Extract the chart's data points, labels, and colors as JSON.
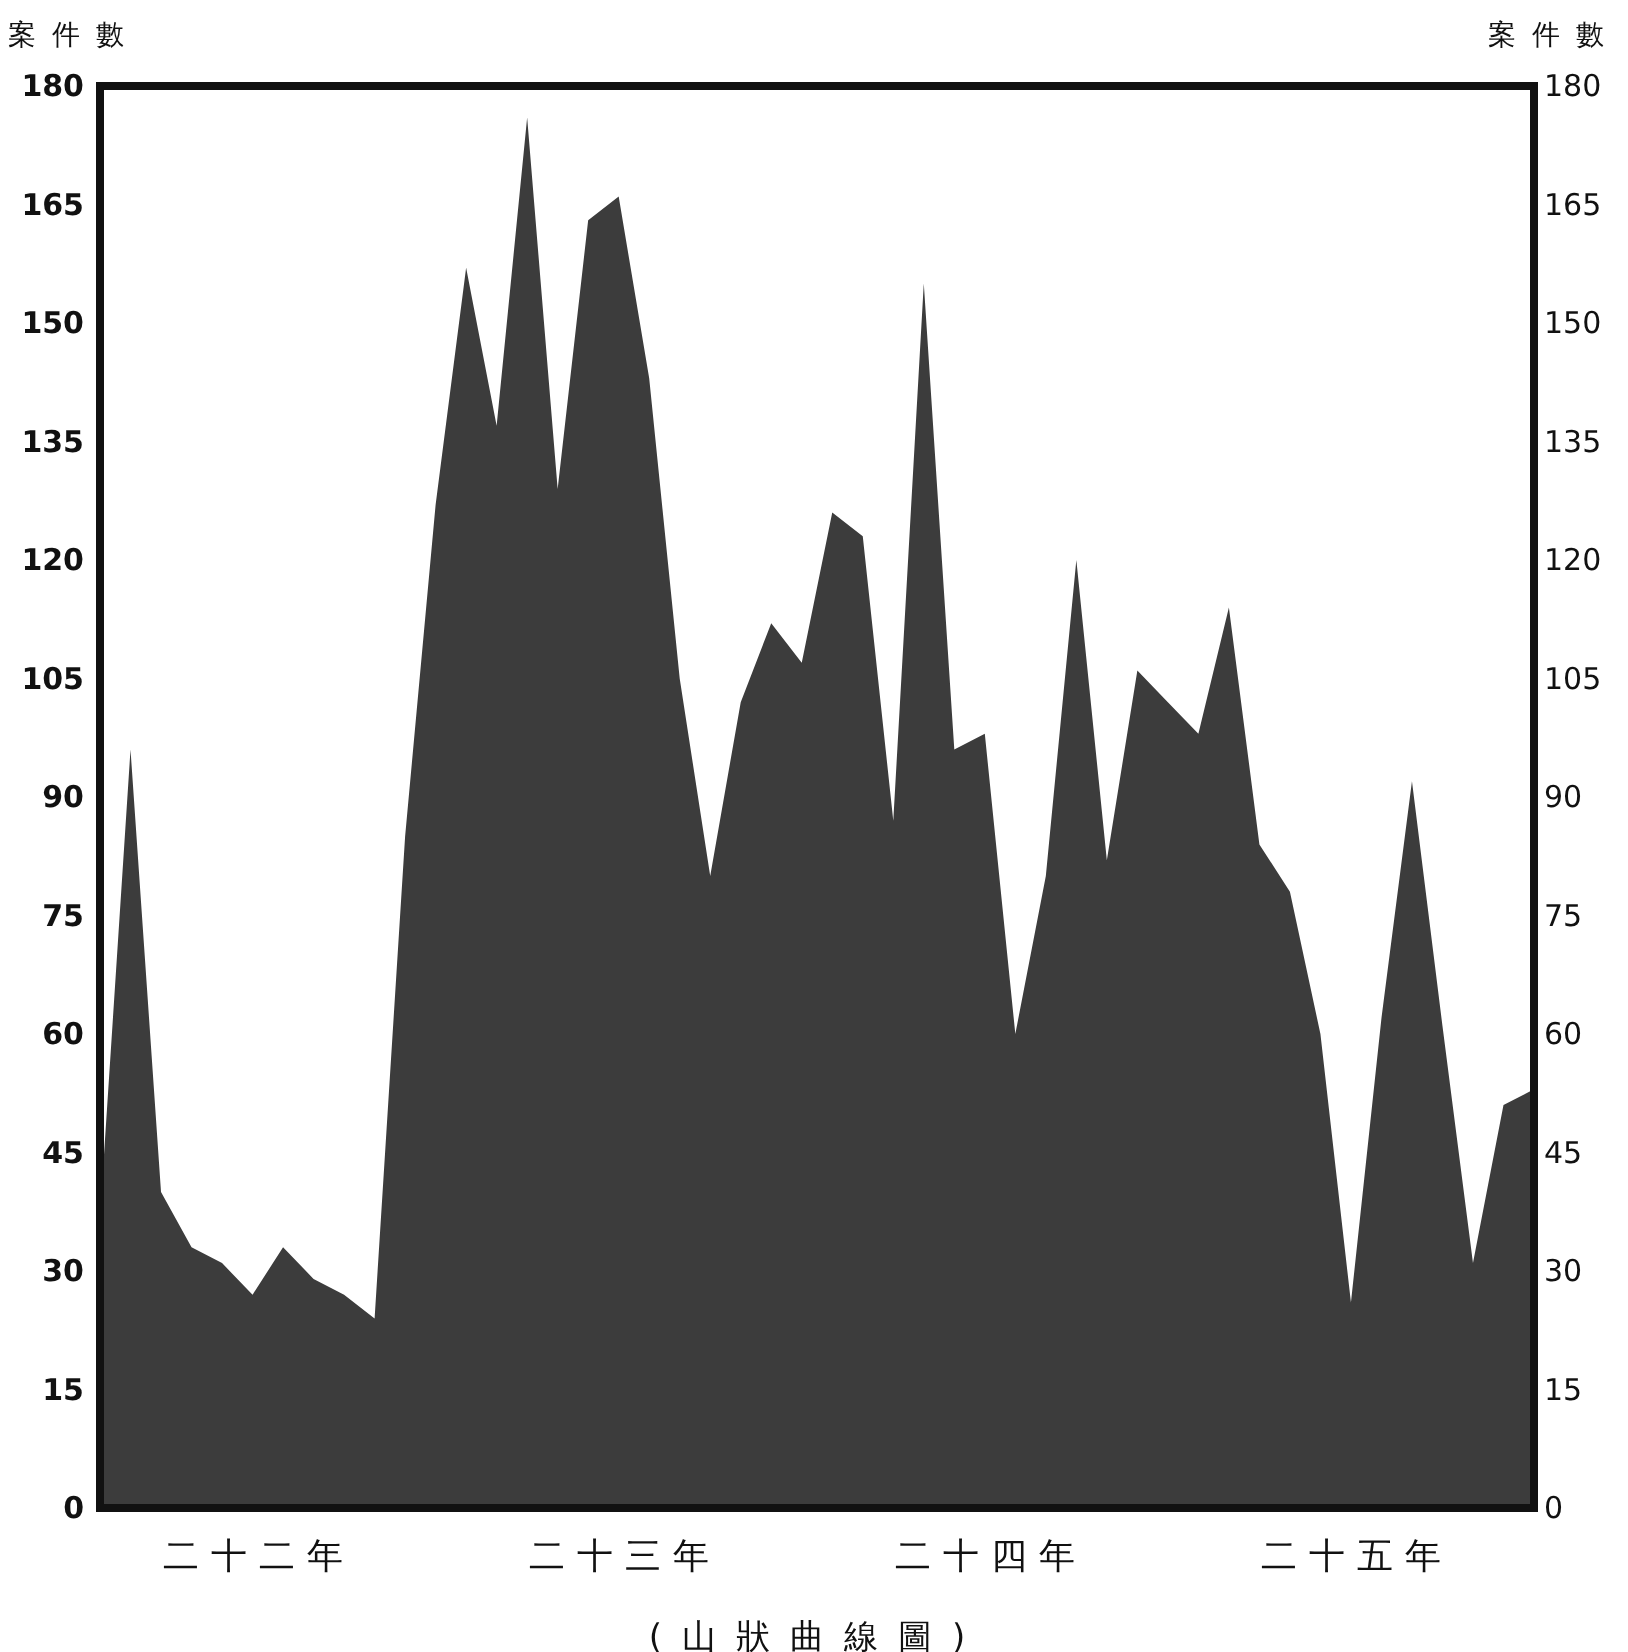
{
  "chart_data": {
    "type": "area",
    "ylabel": "案件數",
    "y2label": "案件數",
    "categories": [
      null,
      null,
      null,
      null,
      null,
      "二十二年",
      null,
      null,
      null,
      null,
      null,
      null,
      null,
      null,
      null,
      null,
      null,
      "二十三年",
      null,
      null,
      null,
      null,
      null,
      null,
      null,
      null,
      null,
      null,
      null,
      "二十四年",
      null,
      null,
      null,
      null,
      null,
      null,
      null,
      null,
      null,
      null,
      null,
      "二十五年",
      null,
      null,
      null,
      null,
      null,
      null
    ],
    "series": [
      {
        "color": "#3c3c3c",
        "values": [
          37,
          96,
          40,
          33,
          31,
          27,
          33,
          29,
          27,
          24,
          85,
          127,
          157,
          137,
          176,
          129,
          163,
          166,
          143,
          105,
          80,
          102,
          112,
          107,
          126,
          123,
          87,
          155,
          96,
          98,
          60,
          80,
          120,
          82,
          106,
          102,
          98,
          114,
          84,
          78,
          60,
          26,
          62,
          92,
          61,
          31,
          51,
          53
        ]
      }
    ],
    "ylim": [
      0,
      180
    ],
    "yticks": [
      0,
      15,
      30,
      45,
      60,
      75,
      90,
      105,
      120,
      135,
      150,
      165,
      180
    ],
    "y2lim": [
      0,
      180
    ],
    "y2ticks": [
      0,
      15,
      30,
      45,
      60,
      75,
      90,
      105,
      120,
      135,
      150,
      165,
      180
    ],
    "annotations": [
      "(山狀曲線圖)"
    ]
  }
}
